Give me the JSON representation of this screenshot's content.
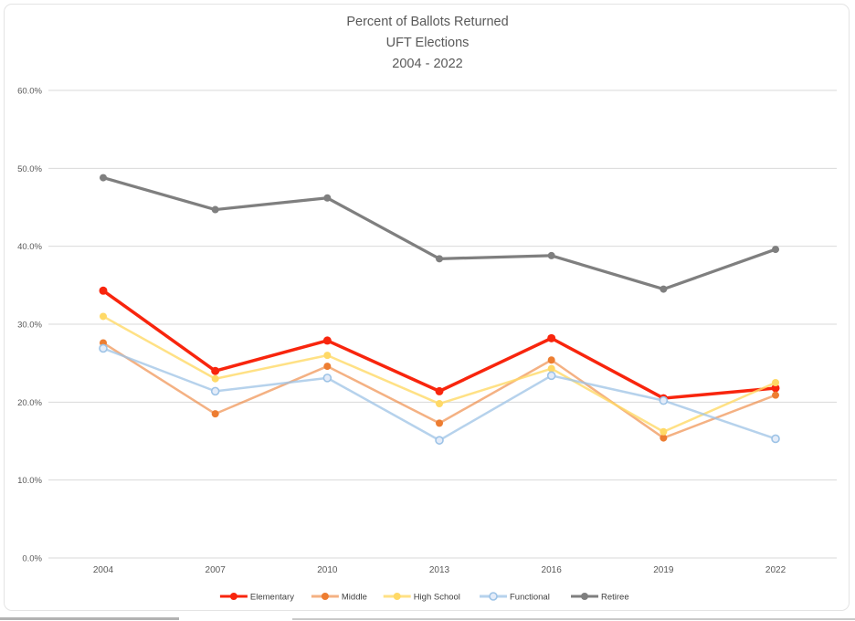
{
  "title": {
    "line1": "Percent of Ballots Returned",
    "line2": "UFT Elections",
    "line3": "2004 - 2022"
  },
  "chart_data": {
    "type": "line",
    "categories": [
      "2004",
      "2007",
      "2010",
      "2013",
      "2016",
      "2019",
      "2022"
    ],
    "series": [
      {
        "name": "Elementary",
        "color": "#f8250d",
        "marker": "filled",
        "line_width": 3.5,
        "line_opacity": 1,
        "values": [
          34.3,
          24.0,
          27.9,
          21.4,
          28.2,
          20.5,
          21.8
        ]
      },
      {
        "name": "Middle",
        "color": "#ed7d31",
        "marker": "filled",
        "line_width": 2.5,
        "line_opacity": 0.6,
        "values": [
          27.6,
          18.5,
          24.6,
          17.3,
          25.4,
          15.4,
          20.9
        ]
      },
      {
        "name": "High School",
        "color": "#ffd966",
        "marker": "filled",
        "line_width": 2.5,
        "line_opacity": 0.8,
        "values": [
          31.0,
          23.0,
          26.0,
          19.8,
          24.3,
          16.2,
          22.5
        ]
      },
      {
        "name": "Functional",
        "color": "#9dc3e6",
        "marker": "open",
        "line_width": 2.5,
        "line_opacity": 0.75,
        "values": [
          26.9,
          21.4,
          23.1,
          15.1,
          23.4,
          20.2,
          15.3
        ]
      },
      {
        "name": "Retiree",
        "color": "#7f7f7f",
        "marker": "filled",
        "line_width": 3.25,
        "line_opacity": 1,
        "values": [
          48.8,
          44.7,
          46.2,
          38.4,
          38.8,
          34.5,
          39.6
        ]
      }
    ],
    "ylim": [
      0,
      60
    ],
    "ytick_step": 10,
    "ytick_labels": [
      "0.0%",
      "10.0%",
      "20.0%",
      "30.0%",
      "40.0%",
      "50.0%",
      "60.0%"
    ],
    "xlabel": "",
    "ylabel": "",
    "grid": true,
    "legend_position": "bottom"
  },
  "colors": {
    "gridline": "#d9d9d9",
    "axis_text": "#595959",
    "legend_text": "#404040",
    "title_text": "#595959",
    "open_marker_fill": "#e4ecf9"
  }
}
